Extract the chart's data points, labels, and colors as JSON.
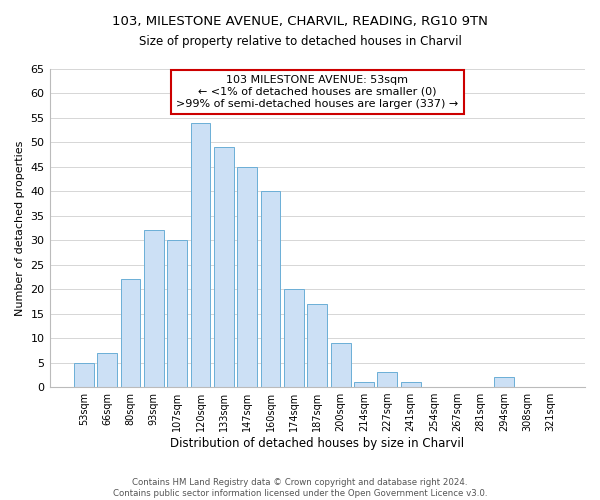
{
  "title_line1": "103, MILESTONE AVENUE, CHARVIL, READING, RG10 9TN",
  "title_line2": "Size of property relative to detached houses in Charvil",
  "xlabel": "Distribution of detached houses by size in Charvil",
  "ylabel": "Number of detached properties",
  "bar_labels": [
    "53sqm",
    "66sqm",
    "80sqm",
    "93sqm",
    "107sqm",
    "120sqm",
    "133sqm",
    "147sqm",
    "160sqm",
    "174sqm",
    "187sqm",
    "200sqm",
    "214sqm",
    "227sqm",
    "241sqm",
    "254sqm",
    "267sqm",
    "281sqm",
    "294sqm",
    "308sqm",
    "321sqm"
  ],
  "bar_values": [
    5,
    7,
    22,
    32,
    30,
    54,
    49,
    45,
    40,
    20,
    17,
    9,
    1,
    3,
    1,
    0,
    0,
    0,
    2,
    0,
    0
  ],
  "bar_color": "#cce0f5",
  "bar_edge_color": "#6baed6",
  "ylim": [
    0,
    65
  ],
  "yticks": [
    0,
    5,
    10,
    15,
    20,
    25,
    30,
    35,
    40,
    45,
    50,
    55,
    60,
    65
  ],
  "annotation_title": "103 MILESTONE AVENUE: 53sqm",
  "annotation_line1": "← <1% of detached houses are smaller (0)",
  "annotation_line2": ">99% of semi-detached houses are larger (337) →",
  "annotation_box_color": "#ffffff",
  "annotation_box_edge": "#cc0000",
  "subject_bar_index": 0,
  "footer_line1": "Contains HM Land Registry data © Crown copyright and database right 2024.",
  "footer_line2": "Contains public sector information licensed under the Open Government Licence v3.0.",
  "background_color": "#ffffff",
  "grid_color": "#d0d0d0"
}
